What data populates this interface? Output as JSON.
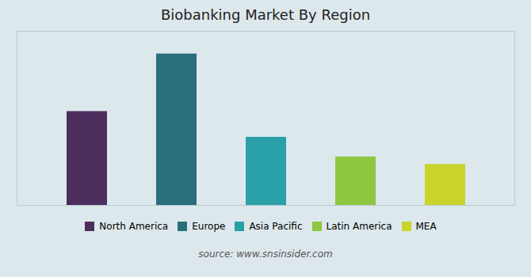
{
  "chart_data": {
    "type": "bar",
    "title": "Biobanking Market By Region",
    "categories": [
      "North America",
      "Europe",
      "Asia Pacific",
      "Latin America",
      "MEA"
    ],
    "values": [
      62,
      100,
      45,
      32,
      27
    ],
    "colors": [
      "#4B2D5E",
      "#2A6E7C",
      "#2AA0A8",
      "#8DC63F",
      "#C8D42A"
    ],
    "ylim": [
      0,
      115
    ],
    "grid": false,
    "tick_labels": false,
    "legend": "bottom",
    "annotation": "source: www.snsinsider.com"
  }
}
